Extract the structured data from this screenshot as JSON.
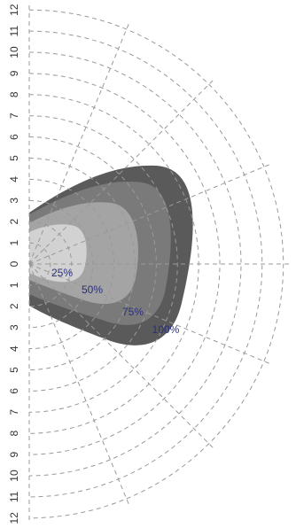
{
  "chart_data": {
    "type": "polar-beam-pattern",
    "radial_scale_labels_upper": [
      "12",
      "11",
      "10",
      "9",
      "8",
      "7",
      "6",
      "5",
      "4",
      "3",
      "2",
      "1"
    ],
    "center_label": "0",
    "radial_scale_labels_lower": [
      "1",
      "2",
      "3",
      "4",
      "5",
      "6",
      "7",
      "8",
      "9",
      "10",
      "11",
      "12"
    ],
    "rings": [
      1,
      2,
      3,
      4,
      5,
      6,
      7,
      8,
      9,
      10,
      11,
      12
    ],
    "spoke_angles_deg": [
      -67.5,
      -45,
      -22.5,
      0,
      22.5,
      45,
      67.5
    ],
    "zones": [
      {
        "label": "100%",
        "color": "#5a5a5a"
      },
      {
        "label": "75%",
        "color": "#7a7a7a"
      },
      {
        "label": "50%",
        "color": "#a4a4a4"
      },
      {
        "label": "25%",
        "color": "#d2d2d2"
      }
    ],
    "label_color": "#2a2f7a",
    "grid_color": "#999999"
  }
}
